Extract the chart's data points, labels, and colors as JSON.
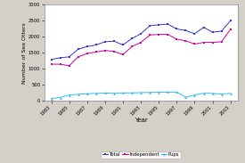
{
  "years": [
    1983,
    1984,
    1985,
    1986,
    1987,
    1988,
    1989,
    1990,
    1991,
    1992,
    1993,
    1994,
    1995,
    1996,
    1997,
    1998,
    1999,
    2000,
    2001,
    2002,
    2003
  ],
  "total": [
    1300,
    1350,
    1380,
    1620,
    1700,
    1750,
    1850,
    1870,
    1750,
    1950,
    2100,
    2350,
    2380,
    2400,
    2250,
    2200,
    2100,
    2300,
    2150,
    2180,
    2510
  ],
  "independent": [
    1150,
    1150,
    1100,
    1380,
    1480,
    1530,
    1580,
    1550,
    1450,
    1700,
    1830,
    2060,
    2080,
    2080,
    1930,
    1880,
    1780,
    1830,
    1830,
    1850,
    2240
  ],
  "pups": [
    80,
    110,
    190,
    210,
    230,
    240,
    250,
    245,
    255,
    255,
    265,
    270,
    275,
    280,
    280,
    120,
    190,
    245,
    240,
    220,
    240
  ],
  "total_color": "#3333cc",
  "independent_color": "#cc0099",
  "pups_color": "#33bbee",
  "xlabel": "Year",
  "ylabel": "Number of Sea Otters",
  "ylim": [
    0,
    3000
  ],
  "yticks": [
    0,
    500,
    1000,
    1500,
    2000,
    2500,
    3000
  ],
  "xtick_years": [
    1983,
    1985,
    1987,
    1989,
    1991,
    1993,
    1995,
    1997,
    1999,
    2001,
    2003
  ],
  "bg_color": "#d4d0c8",
  "plot_bg": "#ffffff",
  "legend_labels": [
    "Total",
    "Independent",
    "Pups"
  ]
}
